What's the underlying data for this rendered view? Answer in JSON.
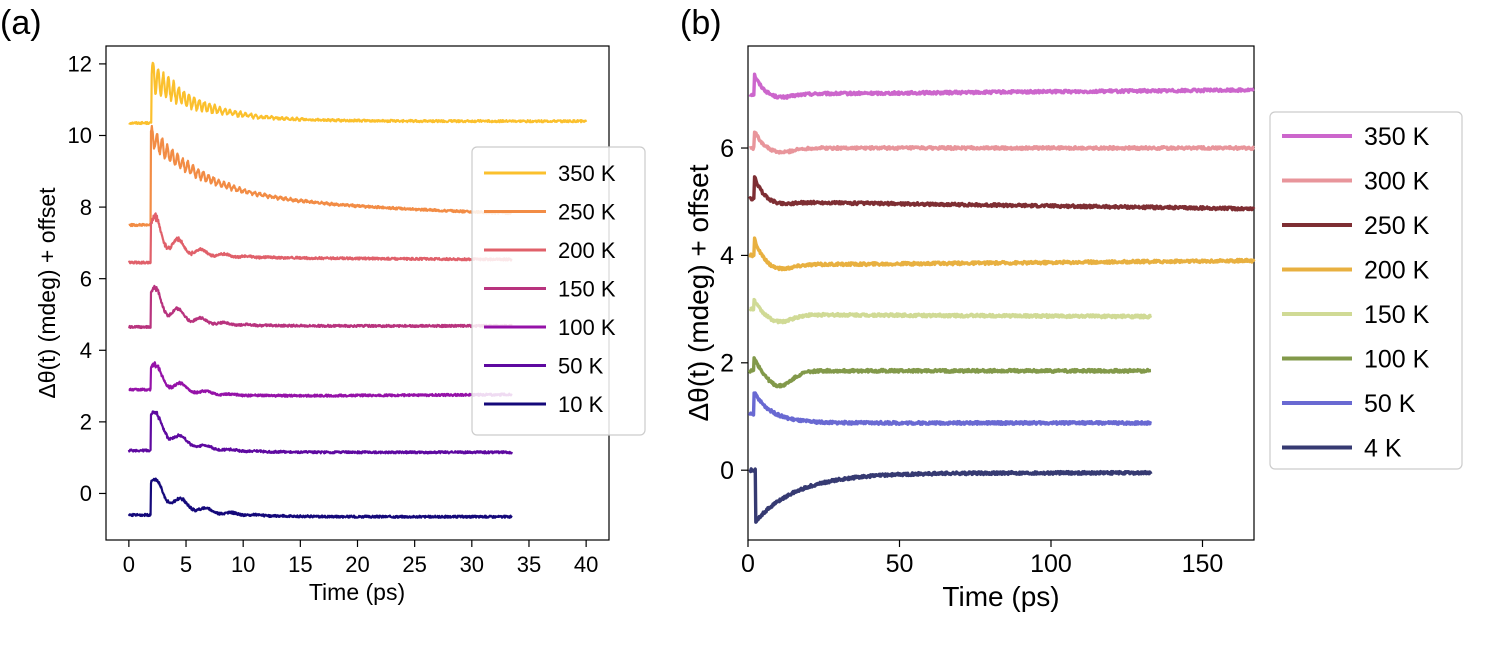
{
  "figure": {
    "panel_labels": [
      "(a)",
      "(b)"
    ]
  },
  "chart_data": [
    {
      "type": "line",
      "panel": "(a)",
      "xlabel": "Time (ps)",
      "ylabel": "Δθ(t) (mdeg) + offset",
      "xlim": [
        -2,
        42
      ],
      "ylim": [
        -1.3,
        12.5
      ],
      "xticks": [
        0,
        5,
        10,
        15,
        20,
        25,
        30,
        35,
        40
      ],
      "yticks": [
        0,
        2,
        4,
        6,
        8,
        10,
        12
      ],
      "grid": false,
      "legend_position": "center-right",
      "series": [
        {
          "name": "350 K",
          "color": "#FBC02D",
          "baseline": 10.35,
          "onset": 2.0,
          "peak": 11.7,
          "plateau": 10.4,
          "tau": 4.0,
          "osc_amp": 0.5,
          "osc_period": 0.45,
          "t_end": 40,
          "trend": 0.0
        },
        {
          "name": "250 K",
          "color": "#F28C45",
          "baseline": 7.5,
          "onset": 1.9,
          "peak": 10.0,
          "plateau": 8.2,
          "tau": 5.0,
          "osc_amp": 0.35,
          "osc_period": 0.45,
          "t_end": 33.5,
          "trend": -0.012
        },
        {
          "name": "200 K",
          "color": "#E0606A",
          "baseline": 6.45,
          "onset": 1.9,
          "peak": 7.5,
          "plateau": 6.6,
          "tau": 2.5,
          "osc_amp": 0.55,
          "osc_period": 2.0,
          "t_end": 33.5,
          "trend": -0.002
        },
        {
          "name": "150 K",
          "color": "#B8337E",
          "baseline": 4.65,
          "onset": 1.9,
          "peak": 5.6,
          "plateau": 4.68,
          "tau": 2.5,
          "osc_amp": 0.45,
          "osc_period": 2.0,
          "t_end": 33.5,
          "trend": 0.0
        },
        {
          "name": "100 K",
          "color": "#9512A8",
          "baseline": 2.9,
          "onset": 1.9,
          "peak": 3.5,
          "plateau": 2.7,
          "tau": 2.5,
          "osc_amp": 0.35,
          "osc_period": 2.2,
          "t_end": 33.5,
          "trend": 0.002
        },
        {
          "name": "50 K",
          "color": "#5E09A0",
          "baseline": 1.2,
          "onset": 1.9,
          "peak": 2.2,
          "plateau": 1.15,
          "tau": 2.5,
          "osc_amp": 0.35,
          "osc_period": 2.2,
          "t_end": 33.5,
          "trend": 0.0
        },
        {
          "name": "10 K",
          "color": "#14087A",
          "baseline": -0.6,
          "onset": 1.9,
          "peak": 0.3,
          "plateau": -0.65,
          "tau": 3.0,
          "osc_amp": 0.35,
          "osc_period": 2.2,
          "t_end": 33.5,
          "trend": 0.0
        }
      ]
    },
    {
      "type": "line",
      "panel": "(b)",
      "xlabel": "Time (ps)",
      "ylabel": "Δθ(t) (mdeg) + offset",
      "xlim": [
        0,
        167
      ],
      "ylim": [
        -1.3,
        7.9
      ],
      "xticks": [
        0,
        50,
        100,
        150
      ],
      "yticks": [
        0,
        2,
        4,
        6
      ],
      "grid": false,
      "legend_position": "outside-right",
      "series": [
        {
          "name": "350 K",
          "color": "#CC66CC",
          "baseline": 7.0,
          "onset": 2.0,
          "peak": 7.4,
          "plateau": 7.0,
          "tau": 3.0,
          "dip": -0.08,
          "t_end": 167,
          "trend": 0.0005
        },
        {
          "name": "300 K",
          "color": "#E8959B",
          "baseline": 6.0,
          "onset": 2.0,
          "peak": 6.35,
          "plateau": 6.0,
          "tau": 3.0,
          "dip": -0.1,
          "t_end": 167,
          "trend": 0.0
        },
        {
          "name": "250 K",
          "color": "#7E2E33",
          "baseline": 5.05,
          "onset": 2.0,
          "peak": 5.5,
          "plateau": 5.0,
          "tau": 3.0,
          "dip": -0.05,
          "t_end": 167,
          "trend": -0.0008
        },
        {
          "name": "200 K",
          "color": "#E8B040",
          "baseline": 4.0,
          "onset": 2.0,
          "peak": 4.35,
          "plateau": 3.82,
          "tau": 3.0,
          "dip": -0.1,
          "t_end": 167,
          "trend": 0.0005
        },
        {
          "name": "150 K",
          "color": "#D0DA95",
          "baseline": 3.0,
          "onset": 2.0,
          "peak": 3.2,
          "plateau": 2.9,
          "tau": 3.0,
          "dip": -0.15,
          "t_end": 133,
          "trend": -0.0003
        },
        {
          "name": "100 K",
          "color": "#82994A",
          "baseline": 1.85,
          "onset": 2.0,
          "peak": 2.15,
          "plateau": 1.85,
          "tau": 3.0,
          "dip": -0.3,
          "t_end": 133,
          "trend": 0.0
        },
        {
          "name": "50 K",
          "color": "#6969D2",
          "baseline": 1.05,
          "onset": 2.0,
          "peak": 1.45,
          "plateau": 0.88,
          "tau": 6.0,
          "dip": 0.0,
          "t_end": 133,
          "trend": 0.0
        },
        {
          "name": "4 K",
          "color": "#363A72",
          "baseline": 0.0,
          "onset": 2.5,
          "peak": -0.95,
          "plateau": -0.05,
          "tau": 14.0,
          "dip": 0.0,
          "t_end": 133,
          "trend": 0.0
        }
      ]
    }
  ]
}
